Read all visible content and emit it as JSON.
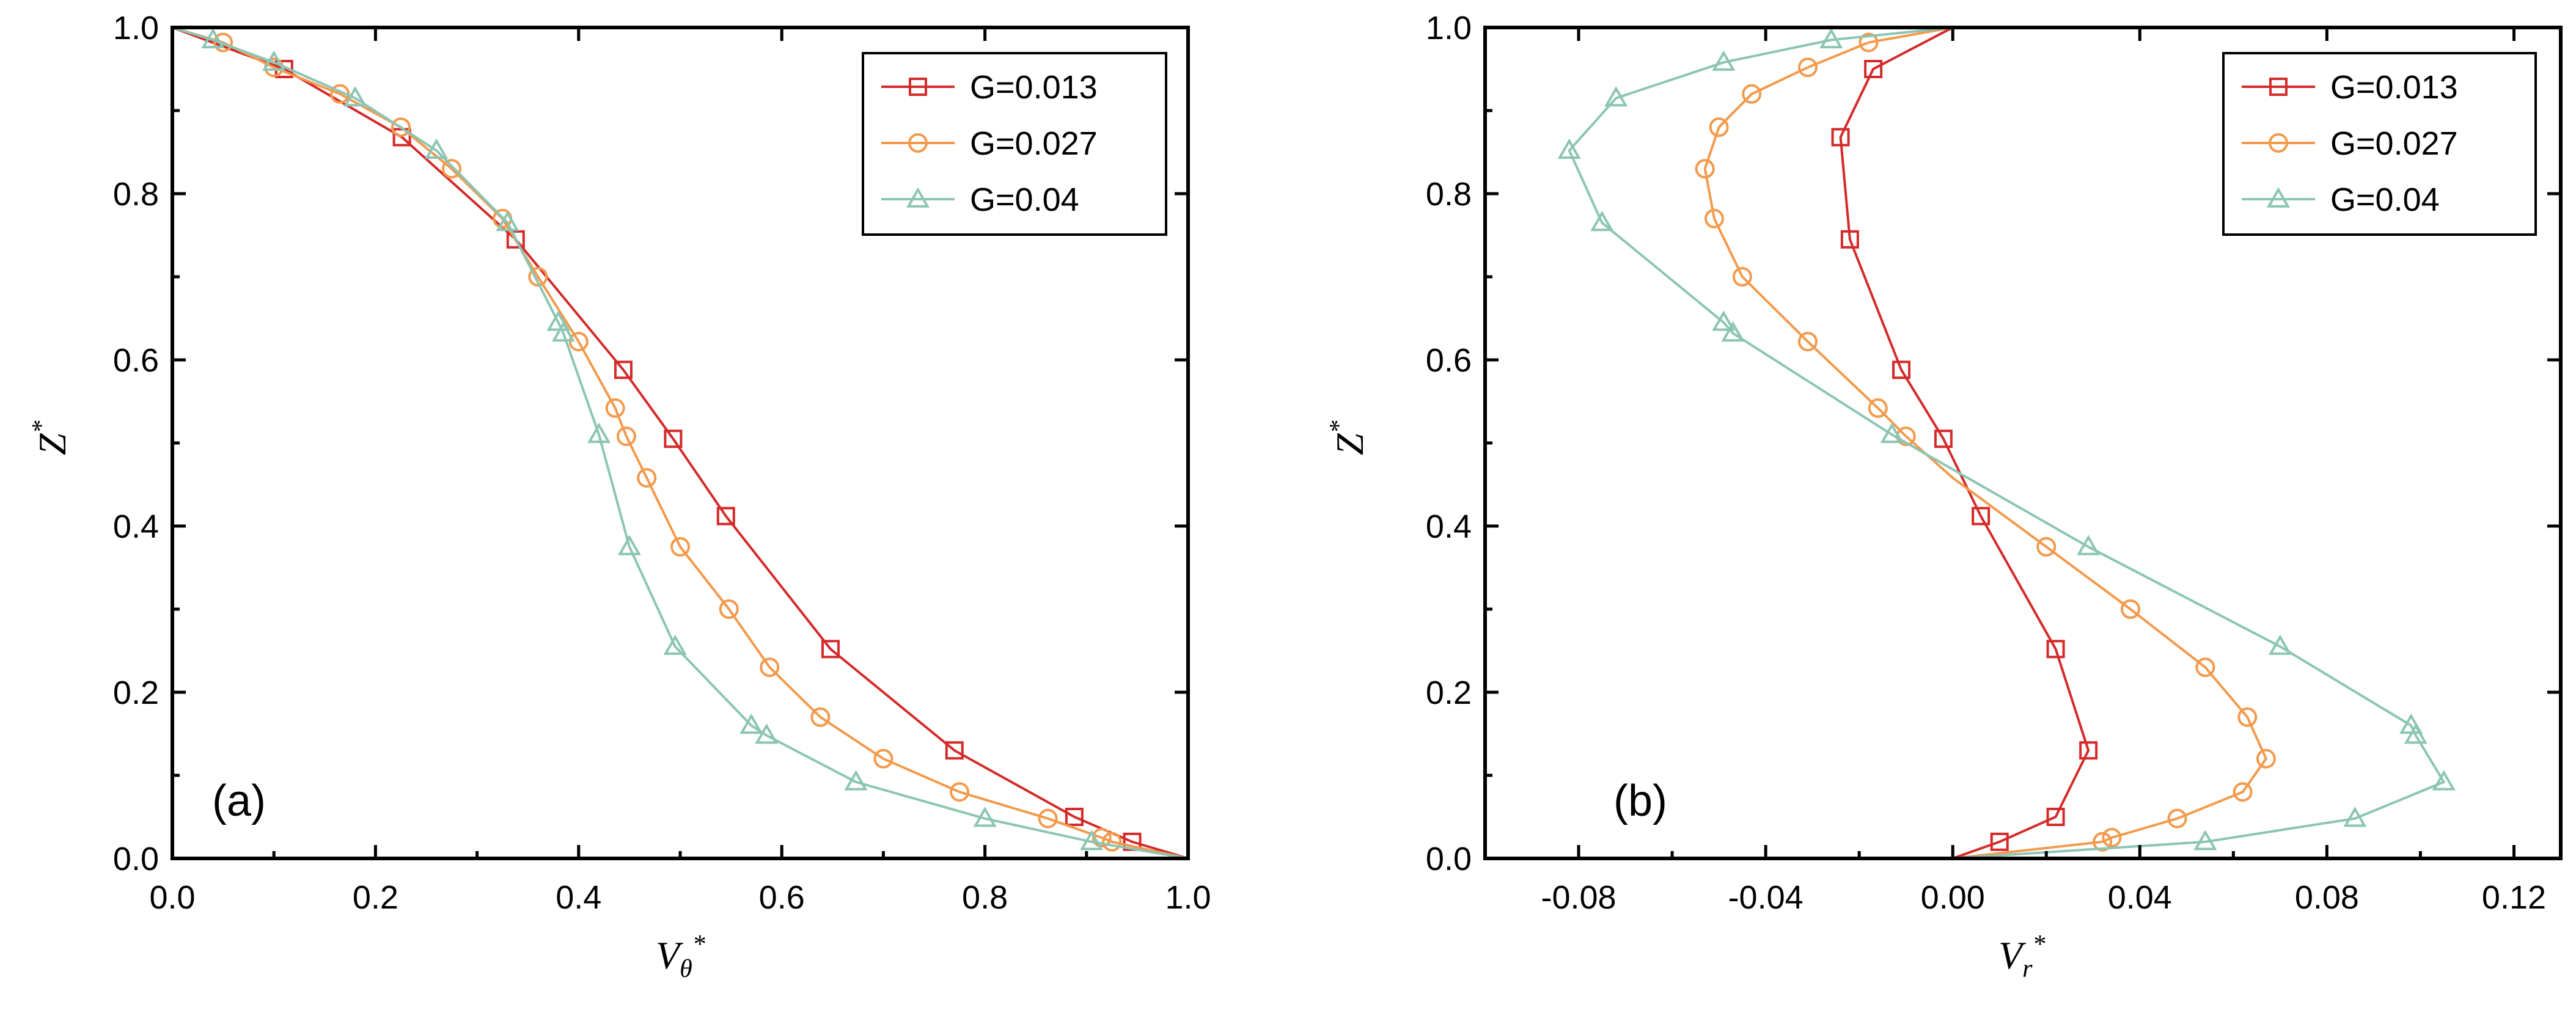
{
  "chart_data": [
    {
      "type": "line",
      "panel_label": "(a)",
      "xlabel": "Vθ*",
      "xlabel_main": "V",
      "xlabel_sub": "θ",
      "xlabel_sup": "*",
      "ylabel": "Z*",
      "ylabel_main": "Z",
      "ylabel_sup": "*",
      "xlim": [
        0.0,
        1.0
      ],
      "ylim": [
        0.0,
        1.0
      ],
      "xticks": [
        "0.0",
        "0.2",
        "0.4",
        "0.6",
        "0.8",
        "1.0"
      ],
      "xtick_values": [
        0.0,
        0.2,
        0.4,
        0.6,
        0.8,
        1.0
      ],
      "yticks": [
        "0.0",
        "0.2",
        "0.4",
        "0.6",
        "0.8",
        "1.0"
      ],
      "ytick_values": [
        0.0,
        0.2,
        0.4,
        0.6,
        0.8,
        1.0
      ],
      "legend_position": "top-right",
      "series": [
        {
          "name": "G=0.013",
          "color": "#d42a2a",
          "marker": "square",
          "x": [
            1.0,
            0.945,
            0.888,
            0.77,
            0.648,
            0.545,
            0.493,
            0.444,
            0.338,
            0.226,
            0.11,
            0.0
          ],
          "y": [
            0.0,
            0.02,
            0.05,
            0.13,
            0.252,
            0.412,
            0.505,
            0.588,
            0.745,
            0.868,
            0.95,
            1.0
          ],
          "markers_x": [
            0.945,
            0.888,
            0.77,
            0.648,
            0.545,
            0.493,
            0.444,
            0.338,
            0.226,
            0.11
          ],
          "markers_y": [
            0.02,
            0.05,
            0.13,
            0.252,
            0.412,
            0.505,
            0.588,
            0.745,
            0.868,
            0.95
          ]
        },
        {
          "name": "G=0.027",
          "color": "#f39a4c",
          "marker": "circle",
          "x": [
            1.0,
            0.925,
            0.915,
            0.862,
            0.775,
            0.7,
            0.638,
            0.588,
            0.548,
            0.5,
            0.467,
            0.447,
            0.436,
            0.4,
            0.36,
            0.325,
            0.275,
            0.225,
            0.165,
            0.1,
            0.05,
            0.0
          ],
          "y": [
            0.0,
            0.02,
            0.025,
            0.048,
            0.08,
            0.12,
            0.17,
            0.23,
            0.3,
            0.375,
            0.458,
            0.508,
            0.542,
            0.622,
            0.7,
            0.77,
            0.83,
            0.88,
            0.92,
            0.952,
            0.982,
            1.0
          ],
          "markers_x": [
            0.925,
            0.915,
            0.862,
            0.775,
            0.7,
            0.638,
            0.588,
            0.548,
            0.5,
            0.467,
            0.447,
            0.436,
            0.4,
            0.36,
            0.325,
            0.275,
            0.225,
            0.165,
            0.1,
            0.05
          ],
          "markers_y": [
            0.02,
            0.025,
            0.048,
            0.08,
            0.12,
            0.17,
            0.23,
            0.3,
            0.375,
            0.458,
            0.508,
            0.542,
            0.622,
            0.7,
            0.77,
            0.83,
            0.88,
            0.92,
            0.952,
            0.982
          ]
        },
        {
          "name": "G=0.04",
          "color": "#8cc5b4",
          "marker": "triangle",
          "x": [
            1.0,
            0.905,
            0.8,
            0.673,
            0.585,
            0.57,
            0.495,
            0.45,
            0.42,
            0.385,
            0.38,
            0.33,
            0.26,
            0.18,
            0.1,
            0.04,
            0.0
          ],
          "y": [
            0.0,
            0.02,
            0.048,
            0.092,
            0.148,
            0.16,
            0.255,
            0.375,
            0.51,
            0.632,
            0.645,
            0.765,
            0.852,
            0.915,
            0.958,
            0.985,
            1.0
          ],
          "markers_x": [
            0.905,
            0.8,
            0.673,
            0.585,
            0.57,
            0.495,
            0.45,
            0.42,
            0.385,
            0.38,
            0.33,
            0.26,
            0.18,
            0.1,
            0.04
          ],
          "markers_y": [
            0.02,
            0.048,
            0.092,
            0.148,
            0.16,
            0.255,
            0.375,
            0.51,
            0.632,
            0.645,
            0.765,
            0.852,
            0.915,
            0.958,
            0.985
          ]
        }
      ]
    },
    {
      "type": "line",
      "panel_label": "(b)",
      "xlabel": "Vr*",
      "xlabel_main": "V",
      "xlabel_sub": "r",
      "xlabel_sup": "*",
      "ylabel": "Z*",
      "ylabel_main": "Z",
      "ylabel_sup": "*",
      "xlim": [
        -0.1,
        0.13
      ],
      "ylim": [
        0.0,
        1.0
      ],
      "xticks": [
        "-0.08",
        "-0.04",
        "0.00",
        "0.04",
        "0.08",
        "0.12"
      ],
      "xtick_values": [
        -0.08,
        -0.04,
        0.0,
        0.04,
        0.08,
        0.12
      ],
      "yticks": [
        "0.0",
        "0.2",
        "0.4",
        "0.6",
        "0.8",
        "1.0"
      ],
      "ytick_values": [
        0.0,
        0.2,
        0.4,
        0.6,
        0.8,
        1.0
      ],
      "legend_position": "top-right",
      "series": [
        {
          "name": "G=0.013",
          "color": "#d42a2a",
          "marker": "square",
          "x": [
            0.0,
            0.01,
            0.022,
            0.029,
            0.022,
            0.006,
            -0.002,
            -0.011,
            -0.022,
            -0.024,
            -0.017,
            0.0
          ],
          "y": [
            0.0,
            0.02,
            0.05,
            0.13,
            0.252,
            0.412,
            0.505,
            0.588,
            0.745,
            0.868,
            0.95,
            1.0
          ],
          "markers_x": [
            0.01,
            0.022,
            0.029,
            0.022,
            0.006,
            -0.002,
            -0.011,
            -0.022,
            -0.024,
            -0.017
          ],
          "markers_y": [
            0.02,
            0.05,
            0.13,
            0.252,
            0.412,
            0.505,
            0.588,
            0.745,
            0.868,
            0.95
          ]
        },
        {
          "name": "G=0.027",
          "color": "#f39a4c",
          "marker": "circle",
          "x": [
            0.0,
            0.032,
            0.034,
            0.048,
            0.062,
            0.067,
            0.063,
            0.054,
            0.038,
            0.02,
            0.0,
            -0.01,
            -0.016,
            -0.031,
            -0.045,
            -0.051,
            -0.053,
            -0.05,
            -0.043,
            -0.031,
            -0.018,
            0.0
          ],
          "y": [
            0.0,
            0.02,
            0.025,
            0.048,
            0.08,
            0.12,
            0.17,
            0.23,
            0.3,
            0.375,
            0.458,
            0.508,
            0.542,
            0.622,
            0.7,
            0.77,
            0.83,
            0.88,
            0.92,
            0.952,
            0.982,
            1.0
          ],
          "markers_x": [
            0.032,
            0.034,
            0.048,
            0.062,
            0.067,
            0.063,
            0.054,
            0.038,
            0.02,
            -0.01,
            -0.016,
            -0.031,
            -0.045,
            -0.051,
            -0.053,
            -0.05,
            -0.043,
            -0.031,
            -0.018
          ],
          "markers_y": [
            0.02,
            0.025,
            0.048,
            0.08,
            0.12,
            0.17,
            0.23,
            0.3,
            0.375,
            0.508,
            0.542,
            0.622,
            0.7,
            0.77,
            0.83,
            0.88,
            0.92,
            0.952,
            0.982
          ]
        },
        {
          "name": "G=0.04",
          "color": "#8cc5b4",
          "marker": "triangle",
          "x": [
            0.0,
            0.054,
            0.086,
            0.105,
            0.099,
            0.098,
            0.07,
            0.029,
            -0.013,
            -0.047,
            -0.049,
            -0.075,
            -0.082,
            -0.072,
            -0.049,
            -0.026,
            0.0
          ],
          "y": [
            0.0,
            0.02,
            0.048,
            0.092,
            0.148,
            0.16,
            0.255,
            0.375,
            0.51,
            0.632,
            0.645,
            0.765,
            0.852,
            0.915,
            0.958,
            0.985,
            1.0
          ],
          "markers_x": [
            0.054,
            0.086,
            0.105,
            0.099,
            0.098,
            0.07,
            0.029,
            -0.013,
            -0.047,
            -0.049,
            -0.075,
            -0.082,
            -0.072,
            -0.049,
            -0.026
          ],
          "markers_y": [
            0.02,
            0.048,
            0.092,
            0.148,
            0.16,
            0.255,
            0.375,
            0.51,
            0.632,
            0.645,
            0.765,
            0.852,
            0.915,
            0.958,
            0.985
          ]
        }
      ]
    }
  ]
}
